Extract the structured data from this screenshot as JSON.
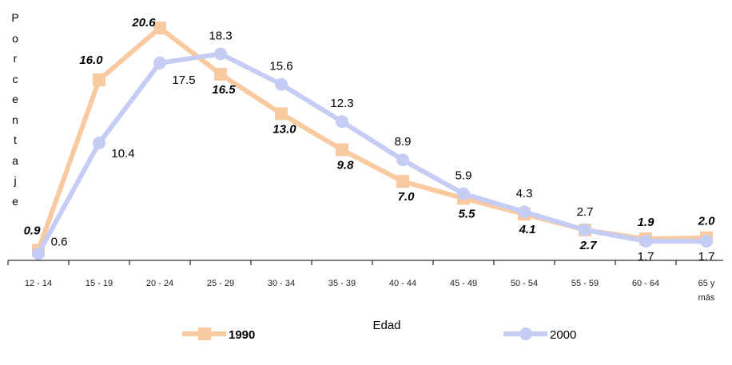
{
  "chart_data": {
    "type": "line",
    "x_label": "Edad",
    "y_label": "Porcentaje",
    "categories": [
      "12 - 14",
      "15 - 19",
      "20 - 24",
      "25 - 29",
      "30 - 34",
      "35 - 39",
      "40 - 44",
      "45 - 49",
      "50 - 54",
      "55 - 59",
      "60 - 64",
      "65 y más"
    ],
    "series": [
      {
        "name": "1990",
        "color": "#f9c9a0",
        "marker": "square",
        "values": [
          0.9,
          16.0,
          20.6,
          16.5,
          13.0,
          9.8,
          7.0,
          5.5,
          4.1,
          2.7,
          1.9,
          2.0
        ],
        "value_labels": [
          "0.9",
          "16.0",
          "20.6",
          "16.5",
          "13.0",
          "9.8",
          "7.0",
          "5.5",
          "4.1",
          "2.7",
          "1.9",
          "2.0"
        ]
      },
      {
        "name": "2000",
        "color": "#c5cdf5",
        "marker": "circle",
        "values": [
          0.6,
          10.4,
          17.5,
          18.3,
          15.6,
          12.3,
          8.9,
          5.9,
          4.3,
          2.7,
          1.7,
          1.7
        ],
        "value_labels": [
          "0.6",
          "10.4",
          "17.5",
          "18.3",
          "15.6",
          "12.3",
          "8.9",
          "5.9",
          "4.3",
          "2.7",
          "1.7",
          "1.7"
        ]
      }
    ]
  }
}
